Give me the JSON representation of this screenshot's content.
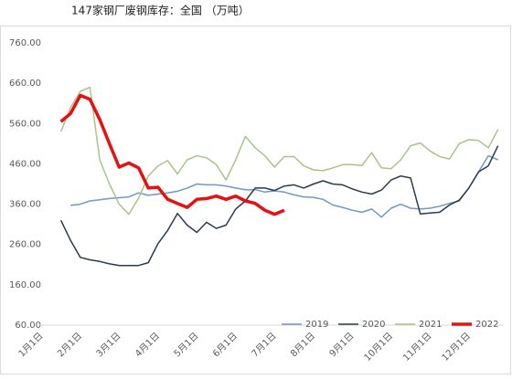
{
  "chart_data": {
    "type": "line",
    "title": "147家钢厂废钢库存：全国 （万吨）",
    "categories": [
      "1月1日",
      null,
      null,
      null,
      "2月1日",
      null,
      null,
      null,
      "3月1日",
      null,
      null,
      null,
      "4月1日",
      null,
      null,
      null,
      "5月1日",
      null,
      null,
      null,
      "6月1日",
      null,
      null,
      null,
      "7月1日",
      null,
      null,
      null,
      "8月1日",
      null,
      null,
      null,
      "9月1日",
      null,
      null,
      null,
      "10月1日",
      null,
      null,
      null,
      "11月1日",
      null,
      null,
      null,
      "12月1日",
      null,
      null,
      null
    ],
    "ylim": [
      60,
      760
    ],
    "yticks": [
      {
        "value": 60,
        "label": "60.00"
      },
      {
        "value": 160,
        "label": "160.00"
      },
      {
        "value": 260,
        "label": "260.00"
      },
      {
        "value": 360,
        "label": "360.00"
      },
      {
        "value": 460,
        "label": "460.00"
      },
      {
        "value": 560,
        "label": "560.00"
      },
      {
        "value": 660,
        "label": "660.00"
      },
      {
        "value": 760,
        "label": "760.00"
      }
    ],
    "grid": false,
    "legend": "bottom-right",
    "series": [
      {
        "name": "2019",
        "color": "#6f98c8",
        "width": 1.5,
        "values": [
          null,
          null,
          null,
          357,
          360,
          368,
          371,
          374,
          376,
          378,
          388,
          382,
          385,
          388,
          392,
          400,
          410,
          408,
          408,
          405,
          400,
          396,
          396,
          390,
          393,
          390,
          383,
          378,
          377,
          372,
          358,
          352,
          345,
          340,
          348,
          328,
          350,
          360,
          350,
          348,
          350,
          355,
          362,
          368,
          400,
          440,
          480,
          470
        ]
      },
      {
        "name": "2020",
        "color": "#2b3a4e",
        "width": 1.5,
        "values": [
          null,
          null,
          320,
          270,
          228,
          222,
          218,
          212,
          208,
          208,
          208,
          215,
          262,
          295,
          337,
          308,
          290,
          315,
          300,
          308,
          348,
          368,
          400,
          400,
          394,
          405,
          408,
          400,
          410,
          418,
          410,
          408,
          398,
          390,
          385,
          395,
          420,
          430,
          425,
          336,
          338,
          340,
          358,
          370,
          400,
          440,
          455,
          505
        ]
      },
      {
        "name": "2021",
        "color": "#a9c48a",
        "width": 1.5,
        "values": [
          null,
          null,
          540,
          600,
          640,
          650,
          470,
          410,
          360,
          335,
          375,
          430,
          455,
          468,
          435,
          470,
          480,
          475,
          458,
          420,
          470,
          528,
          500,
          480,
          452,
          478,
          478,
          455,
          445,
          443,
          450,
          458,
          458,
          456,
          488,
          450,
          448,
          470,
          505,
          512,
          492,
          478,
          472,
          510,
          520,
          518,
          500,
          545
        ]
      },
      {
        "name": "2022",
        "color": "#e8100e",
        "width": 3.5,
        "values": [
          null,
          null,
          565,
          585,
          630,
          620,
          570,
          510,
          452,
          462,
          450,
          400,
          402,
          372,
          362,
          352,
          372,
          374,
          380,
          372,
          380,
          368,
          362,
          345,
          335,
          345,
          null,
          null,
          null,
          null,
          null,
          null,
          null,
          null,
          null,
          null,
          null,
          null,
          null,
          null,
          null,
          null,
          null,
          null,
          null,
          null,
          null,
          null
        ]
      }
    ]
  }
}
